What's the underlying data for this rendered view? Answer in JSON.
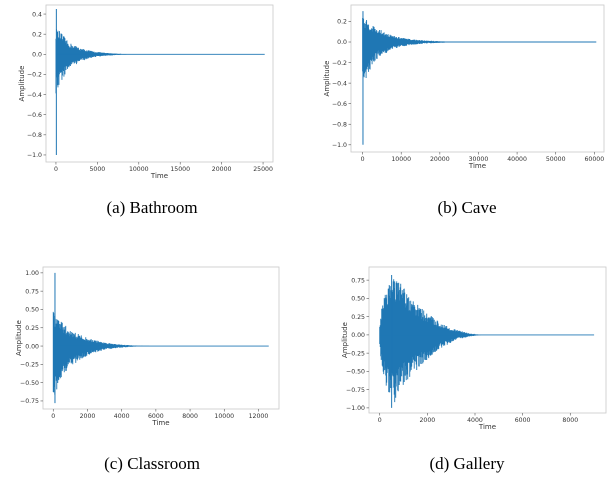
{
  "figure": {
    "captions": [
      "(a)  Bathroom",
      "(b)  Cave",
      "(c)  Classroom",
      "(d)  Gallery"
    ]
  },
  "chart_data": [
    {
      "type": "line",
      "caption": "(a)  Bathroom",
      "xlabel": "Time",
      "ylabel": "Amplitude",
      "xlim": [
        -1200,
        26200
      ],
      "ylim": [
        -1.07,
        0.49
      ],
      "xticks": [
        0,
        5000,
        10000,
        15000,
        20000,
        25000
      ],
      "yticks": [
        0.4,
        0.2,
        0.0,
        -0.2,
        -0.4,
        -0.6,
        -0.8,
        -1.0
      ],
      "xtick_labels": [
        "0",
        "5000",
        "10000",
        "15000",
        "20000",
        "25000"
      ],
      "ytick_labels": [
        "0.4",
        "0.2",
        "0.0",
        "−0.2",
        "−0.4",
        "−0.6",
        "−0.8",
        "−1.0"
      ],
      "grid": false,
      "line_color": "#1f77b4",
      "series": [
        {
          "x_start": 0,
          "x_end": 25200,
          "impulse": {
            "x": 50,
            "min": -1.0,
            "max": 0.45
          },
          "envelope": [
            {
              "x": 0,
              "upper": 0.26,
              "lower": -0.42
            },
            {
              "x": 600,
              "upper": 0.22,
              "lower": -0.28
            },
            {
              "x": 1500,
              "upper": 0.12,
              "lower": -0.15
            },
            {
              "x": 3000,
              "upper": 0.06,
              "lower": -0.07
            },
            {
              "x": 4500,
              "upper": 0.03,
              "lower": -0.03
            },
            {
              "x": 6000,
              "upper": 0.015,
              "lower": -0.015
            },
            {
              "x": 8000,
              "upper": 0.004,
              "lower": -0.004
            },
            {
              "x": 10000,
              "upper": 0.0,
              "lower": 0.0
            },
            {
              "x": 25200,
              "upper": 0.0,
              "lower": 0.0
            }
          ]
        }
      ]
    },
    {
      "type": "line",
      "caption": "(b)  Cave",
      "xlabel": "Time",
      "ylabel": "Amplitude",
      "xlim": [
        -3000,
        62500
      ],
      "ylim": [
        -1.07,
        0.36
      ],
      "xticks": [
        0,
        10000,
        20000,
        30000,
        40000,
        50000,
        60000
      ],
      "yticks": [
        0.2,
        0.0,
        -0.2,
        -0.4,
        -0.6,
        -0.8,
        -1.0
      ],
      "xtick_labels": [
        "0",
        "10000",
        "20000",
        "30000",
        "40000",
        "50000",
        "60000"
      ],
      "ytick_labels": [
        "0.2",
        "0.0",
        "−0.2",
        "−0.4",
        "−0.6",
        "−0.8",
        "−1.0"
      ],
      "grid": false,
      "line_color": "#1f77b4",
      "series": [
        {
          "x_start": 0,
          "x_end": 60500,
          "impulse": {
            "x": 100,
            "min": -1.0,
            "max": 0.3
          },
          "envelope": [
            {
              "x": 0,
              "upper": 0.25,
              "lower": -0.5
            },
            {
              "x": 1500,
              "upper": 0.2,
              "lower": -0.3
            },
            {
              "x": 4000,
              "upper": 0.13,
              "lower": -0.15
            },
            {
              "x": 8000,
              "upper": 0.06,
              "lower": -0.07
            },
            {
              "x": 12000,
              "upper": 0.03,
              "lower": -0.03
            },
            {
              "x": 16000,
              "upper": 0.015,
              "lower": -0.015
            },
            {
              "x": 22000,
              "upper": 0.005,
              "lower": -0.005
            },
            {
              "x": 28000,
              "upper": 0.0,
              "lower": 0.0
            },
            {
              "x": 60500,
              "upper": 0.0,
              "lower": 0.0
            }
          ]
        }
      ]
    },
    {
      "type": "line",
      "caption": "(c)  Classroom",
      "xlabel": "Time",
      "ylabel": "Amplitude",
      "xlim": [
        -600,
        13200
      ],
      "ylim": [
        -0.86,
        1.08
      ],
      "xticks": [
        0,
        2000,
        4000,
        6000,
        8000,
        10000,
        12000
      ],
      "yticks": [
        1.0,
        0.75,
        0.5,
        0.25,
        0.0,
        -0.25,
        -0.5,
        -0.75
      ],
      "xtick_labels": [
        "0",
        "2000",
        "4000",
        "6000",
        "8000",
        "10000",
        "12000"
      ],
      "ytick_labels": [
        "1.00",
        "0.75",
        "0.50",
        "0.25",
        "0.00",
        "−0.25",
        "−0.50",
        "−0.75"
      ],
      "grid": false,
      "line_color": "#1f77b4",
      "series": [
        {
          "x_start": 0,
          "x_end": 12600,
          "impulse": {
            "x": 100,
            "min": -0.78,
            "max": 1.0
          },
          "envelope": [
            {
              "x": 0,
              "upper": 0.5,
              "lower": -0.75
            },
            {
              "x": 400,
              "upper": 0.35,
              "lower": -0.45
            },
            {
              "x": 1000,
              "upper": 0.22,
              "lower": -0.28
            },
            {
              "x": 2000,
              "upper": 0.11,
              "lower": -0.13
            },
            {
              "x": 3000,
              "upper": 0.05,
              "lower": -0.05
            },
            {
              "x": 4000,
              "upper": 0.02,
              "lower": -0.02
            },
            {
              "x": 5000,
              "upper": 0.005,
              "lower": -0.005
            },
            {
              "x": 6000,
              "upper": 0.0,
              "lower": 0.0
            },
            {
              "x": 12600,
              "upper": 0.0,
              "lower": 0.0
            }
          ]
        }
      ]
    },
    {
      "type": "line",
      "caption": "(d)  Gallery",
      "xlabel": "Time",
      "ylabel": "Amplitude",
      "xlim": [
        -450,
        9500
      ],
      "ylim": [
        -1.07,
        0.93
      ],
      "xticks": [
        0,
        2000,
        4000,
        6000,
        8000
      ],
      "yticks": [
        0.75,
        0.5,
        0.25,
        0.0,
        -0.25,
        -0.5,
        -0.75,
        -1.0
      ],
      "xtick_labels": [
        "0",
        "2000",
        "4000",
        "6000",
        "8000"
      ],
      "ytick_labels": [
        "0.75",
        "0.50",
        "0.25",
        "0.00",
        "−0.25",
        "−0.50",
        "−0.75",
        "−1.00"
      ],
      "grid": false,
      "line_color": "#1f77b4",
      "series": [
        {
          "x_start": 0,
          "x_end": 9000,
          "impulse": {
            "x": 500,
            "min": -1.0,
            "max": 0.82
          },
          "envelope": [
            {
              "x": 0,
              "upper": 0.15,
              "lower": -0.15
            },
            {
              "x": 100,
              "upper": 0.45,
              "lower": -0.5
            },
            {
              "x": 300,
              "upper": 0.72,
              "lower": -0.78
            },
            {
              "x": 600,
              "upper": 0.8,
              "lower": -0.95
            },
            {
              "x": 900,
              "upper": 0.7,
              "lower": -0.75
            },
            {
              "x": 1200,
              "upper": 0.55,
              "lower": -0.6
            },
            {
              "x": 1800,
              "upper": 0.35,
              "lower": -0.4
            },
            {
              "x": 2500,
              "upper": 0.18,
              "lower": -0.2
            },
            {
              "x": 3200,
              "upper": 0.07,
              "lower": -0.07
            },
            {
              "x": 3800,
              "upper": 0.02,
              "lower": -0.02
            },
            {
              "x": 4300,
              "upper": 0.0,
              "lower": 0.0
            },
            {
              "x": 9000,
              "upper": 0.0,
              "lower": 0.0
            }
          ]
        }
      ]
    }
  ]
}
